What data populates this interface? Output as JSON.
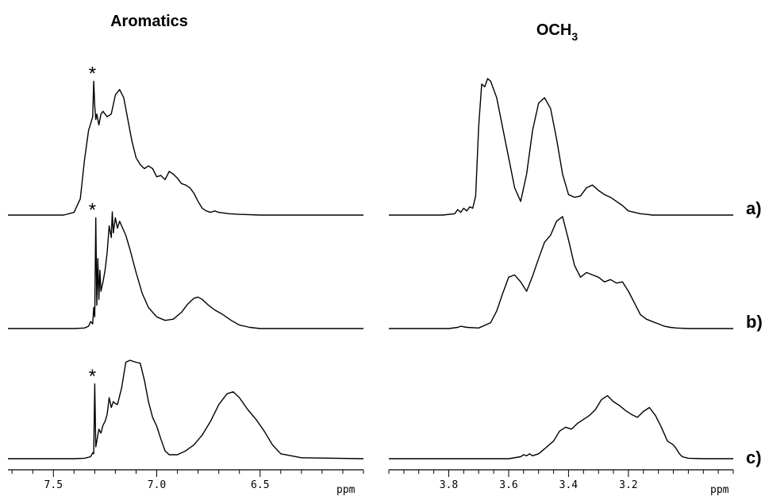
{
  "chart_data": [
    {
      "type": "line",
      "title": "Aromatics",
      "x_unit": "ppm",
      "xlim": [
        7.72,
        6.0
      ],
      "x_ticks": [
        "7.5",
        "7.0",
        "6.5"
      ],
      "x_tick_values": [
        7.5,
        7.0,
        6.5
      ],
      "minor_tick_step": 0.1,
      "series": [
        {
          "trace": "a)",
          "marker": "*",
          "marker_x": 7.3,
          "x": [
            7.72,
            7.45,
            7.4,
            7.37,
            7.35,
            7.33,
            7.31,
            7.305,
            7.3,
            7.295,
            7.29,
            7.28,
            7.27,
            7.26,
            7.24,
            7.22,
            7.2,
            7.18,
            7.16,
            7.14,
            7.12,
            7.1,
            7.08,
            7.06,
            7.04,
            7.02,
            7.0,
            6.98,
            6.96,
            6.94,
            6.92,
            6.9,
            6.88,
            6.86,
            6.84,
            6.82,
            6.8,
            6.78,
            6.76,
            6.74,
            6.72,
            6.7,
            6.65,
            6.6,
            6.5,
            6.4,
            6.0
          ],
          "y": [
            0,
            0,
            0.02,
            0.12,
            0.4,
            0.62,
            0.72,
            0.98,
            0.8,
            0.7,
            0.74,
            0.66,
            0.74,
            0.76,
            0.72,
            0.74,
            0.88,
            0.92,
            0.86,
            0.7,
            0.54,
            0.42,
            0.37,
            0.34,
            0.36,
            0.34,
            0.28,
            0.29,
            0.26,
            0.32,
            0.3,
            0.27,
            0.23,
            0.22,
            0.2,
            0.16,
            0.1,
            0.05,
            0.03,
            0.02,
            0.03,
            0.02,
            0.01,
            0.005,
            0,
            0,
            0
          ]
        },
        {
          "trace": "b)",
          "marker": "*",
          "marker_x": 7.3,
          "x": [
            7.72,
            7.4,
            7.35,
            7.33,
            7.32,
            7.31,
            7.305,
            7.3,
            7.295,
            7.29,
            7.285,
            7.28,
            7.275,
            7.27,
            7.26,
            7.25,
            7.24,
            7.23,
            7.22,
            7.215,
            7.21,
            7.2,
            7.19,
            7.18,
            7.17,
            7.15,
            7.13,
            7.1,
            7.07,
            7.04,
            7.0,
            6.96,
            6.92,
            6.88,
            6.85,
            6.82,
            6.8,
            6.78,
            6.75,
            6.72,
            6.68,
            6.64,
            6.6,
            6.55,
            6.5,
            6.4,
            6.0
          ],
          "y": [
            0,
            0,
            0.005,
            0.02,
            0.06,
            0.04,
            0.18,
            0.1,
            0.95,
            0.2,
            0.6,
            0.25,
            0.5,
            0.32,
            0.4,
            0.5,
            0.65,
            0.88,
            0.78,
            1.0,
            0.82,
            0.95,
            0.86,
            0.92,
            0.88,
            0.8,
            0.68,
            0.48,
            0.3,
            0.18,
            0.1,
            0.07,
            0.08,
            0.14,
            0.21,
            0.26,
            0.27,
            0.25,
            0.2,
            0.16,
            0.12,
            0.07,
            0.03,
            0.01,
            0,
            0,
            0
          ]
        },
        {
          "trace": "c)",
          "marker": "*",
          "marker_x": 7.3,
          "x": [
            7.72,
            7.4,
            7.35,
            7.32,
            7.31,
            7.305,
            7.3,
            7.295,
            7.29,
            7.28,
            7.27,
            7.26,
            7.25,
            7.24,
            7.23,
            7.22,
            7.21,
            7.2,
            7.19,
            7.17,
            7.15,
            7.13,
            7.1,
            7.08,
            7.06,
            7.04,
            7.02,
            7.0,
            6.98,
            6.96,
            6.94,
            6.9,
            6.86,
            6.82,
            6.78,
            6.74,
            6.7,
            6.66,
            6.63,
            6.6,
            6.56,
            6.52,
            6.48,
            6.44,
            6.4,
            6.3,
            6.0
          ],
          "y": [
            0,
            0,
            0.005,
            0.02,
            0.06,
            0.05,
            0.76,
            0.12,
            0.18,
            0.3,
            0.26,
            0.34,
            0.38,
            0.45,
            0.62,
            0.52,
            0.58,
            0.56,
            0.55,
            0.72,
            0.98,
            1.0,
            0.98,
            0.97,
            0.8,
            0.58,
            0.42,
            0.33,
            0.2,
            0.08,
            0.04,
            0.04,
            0.08,
            0.14,
            0.24,
            0.38,
            0.55,
            0.66,
            0.68,
            0.62,
            0.5,
            0.4,
            0.28,
            0.14,
            0.05,
            0.01,
            0
          ]
        }
      ]
    },
    {
      "type": "line",
      "title": "OCH",
      "title_subscript": "3",
      "x_unit": "ppm",
      "xlim": [
        4.0,
        2.85
      ],
      "x_ticks": [
        "3.8",
        "3.6",
        "3.4",
        "3.2"
      ],
      "x_tick_values": [
        3.8,
        3.6,
        3.4,
        3.2
      ],
      "minor_tick_step": 0.05,
      "series": [
        {
          "trace": "a)",
          "x": [
            4.0,
            3.82,
            3.78,
            3.77,
            3.76,
            3.75,
            3.74,
            3.73,
            3.72,
            3.71,
            3.7,
            3.69,
            3.68,
            3.67,
            3.66,
            3.65,
            3.64,
            3.62,
            3.6,
            3.58,
            3.56,
            3.54,
            3.52,
            3.5,
            3.48,
            3.46,
            3.44,
            3.42,
            3.4,
            3.38,
            3.36,
            3.34,
            3.32,
            3.3,
            3.28,
            3.26,
            3.24,
            3.22,
            3.2,
            3.18,
            3.16,
            3.14,
            3.12,
            3.1,
            3.05,
            3.0,
            2.85
          ],
          "y": [
            0,
            0,
            0.01,
            0.04,
            0.02,
            0.05,
            0.03,
            0.06,
            0.05,
            0.14,
            0.65,
            0.96,
            0.94,
            1.0,
            0.98,
            0.92,
            0.86,
            0.64,
            0.42,
            0.2,
            0.1,
            0.3,
            0.62,
            0.82,
            0.86,
            0.78,
            0.56,
            0.3,
            0.15,
            0.13,
            0.14,
            0.2,
            0.22,
            0.18,
            0.15,
            0.13,
            0.1,
            0.07,
            0.03,
            0.02,
            0.01,
            0.005,
            0,
            0,
            0,
            0,
            0
          ]
        },
        {
          "trace": "b)",
          "x": [
            4.0,
            3.8,
            3.77,
            3.76,
            3.74,
            3.7,
            3.66,
            3.64,
            3.62,
            3.6,
            3.58,
            3.56,
            3.54,
            3.52,
            3.5,
            3.48,
            3.46,
            3.44,
            3.42,
            3.4,
            3.38,
            3.36,
            3.34,
            3.32,
            3.3,
            3.28,
            3.26,
            3.24,
            3.22,
            3.2,
            3.18,
            3.16,
            3.14,
            3.12,
            3.1,
            3.08,
            3.06,
            3.04,
            3.0,
            2.95,
            2.85
          ],
          "y": [
            0,
            0,
            0.01,
            0.02,
            0.01,
            0.005,
            0.05,
            0.15,
            0.3,
            0.44,
            0.46,
            0.4,
            0.32,
            0.45,
            0.6,
            0.74,
            0.8,
            0.92,
            0.96,
            0.76,
            0.54,
            0.44,
            0.48,
            0.46,
            0.44,
            0.4,
            0.42,
            0.39,
            0.4,
            0.32,
            0.22,
            0.12,
            0.08,
            0.06,
            0.04,
            0.02,
            0.01,
            0.005,
            0,
            0,
            0
          ]
        },
        {
          "trace": "c)",
          "x": [
            4.0,
            3.6,
            3.56,
            3.55,
            3.54,
            3.53,
            3.52,
            3.5,
            3.48,
            3.45,
            3.43,
            3.41,
            3.39,
            3.37,
            3.35,
            3.33,
            3.31,
            3.29,
            3.27,
            3.25,
            3.23,
            3.21,
            3.19,
            3.17,
            3.15,
            3.13,
            3.11,
            3.09,
            3.07,
            3.05,
            3.04,
            3.03,
            3.02,
            3.0,
            2.95,
            2.85
          ],
          "y": [
            0,
            0,
            0.02,
            0.04,
            0.03,
            0.05,
            0.03,
            0.05,
            0.1,
            0.18,
            0.28,
            0.32,
            0.3,
            0.36,
            0.4,
            0.44,
            0.5,
            0.6,
            0.64,
            0.58,
            0.54,
            0.49,
            0.45,
            0.42,
            0.48,
            0.52,
            0.44,
            0.32,
            0.18,
            0.14,
            0.1,
            0.05,
            0.02,
            0.005,
            0,
            0
          ]
        }
      ]
    }
  ]
}
